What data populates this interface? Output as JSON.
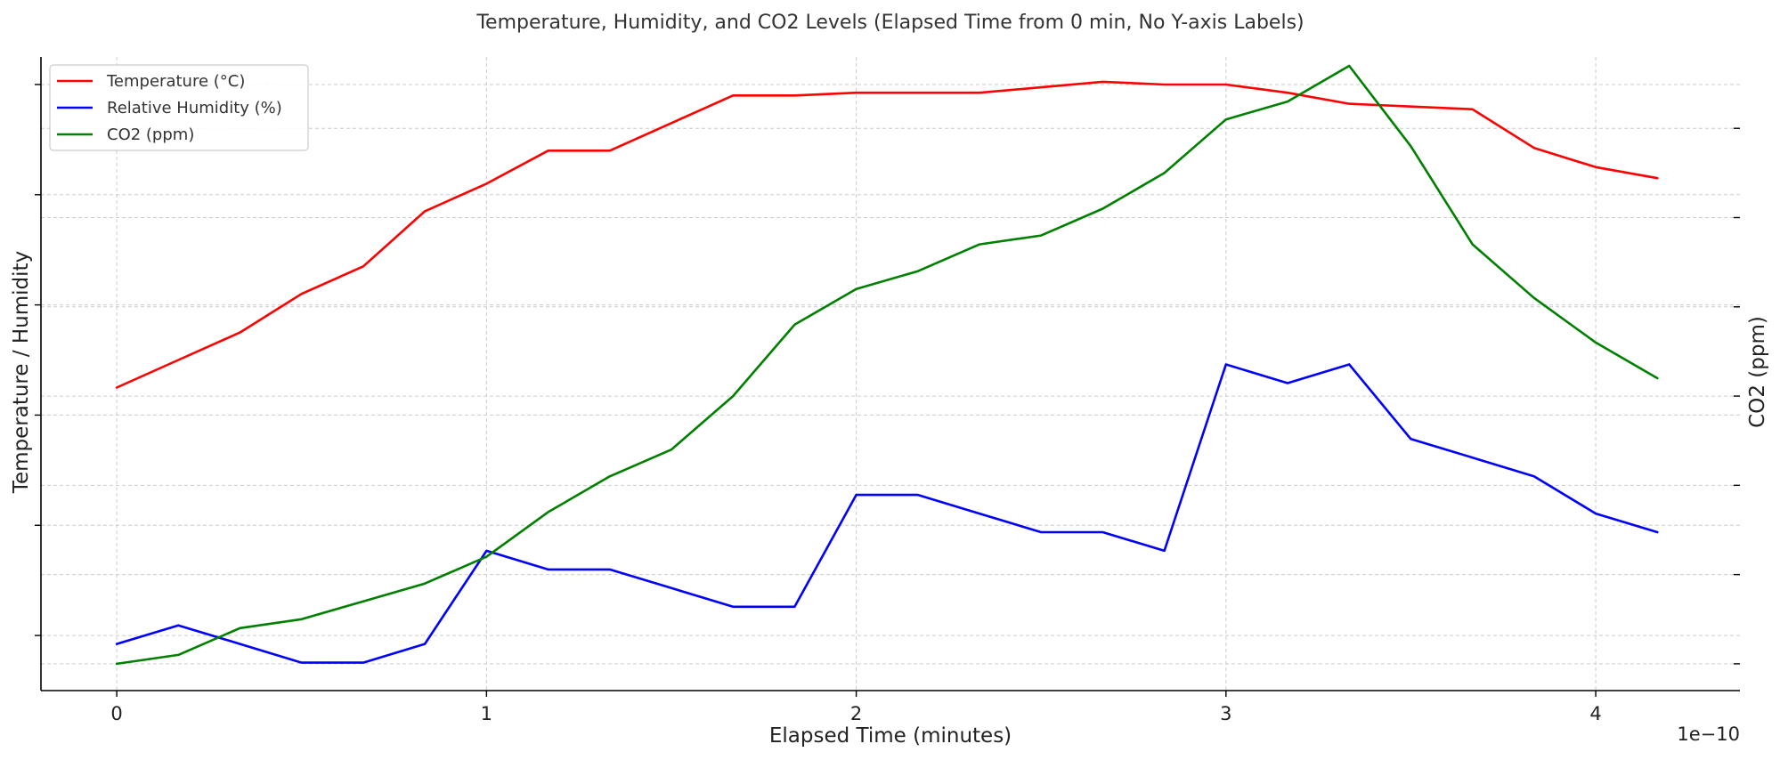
{
  "chart_data": {
    "type": "line",
    "title": "Temperature, Humidity, and CO2 Levels (Elapsed Time from 0 min, No Y-axis Labels)",
    "xlabel": "Elapsed Time (minutes)",
    "ylabel_left": "Temperature / Humidity",
    "ylabel_right": "CO2 (ppm)",
    "x_offset_text": "1e−10",
    "x_ticks": [
      "0",
      "1",
      "2",
      "3",
      "4"
    ],
    "x_tick_values": [
      0,
      1,
      2,
      3,
      4
    ],
    "x": [
      0,
      0.1667,
      0.3333,
      0.5,
      0.6667,
      0.8333,
      1.0,
      1.1667,
      1.3333,
      1.5,
      1.6667,
      1.8333,
      2.0,
      2.1667,
      2.3333,
      2.5,
      2.6667,
      2.8333,
      3.0,
      3.1667,
      3.3333,
      3.5,
      3.6667,
      3.8333,
      4.0,
      4.1667
    ],
    "grid": true,
    "legend_position": "top-left",
    "series": [
      {
        "name": "Temperature (°C)",
        "color": "#ff0000",
        "axis": "left",
        "values": [
          22.5,
          23.0,
          23.5,
          24.2,
          24.7,
          25.7,
          26.2,
          26.8,
          26.8,
          27.3,
          27.8,
          27.8,
          27.85,
          27.85,
          27.85,
          27.95,
          28.05,
          28.0,
          28.0,
          27.85,
          27.65,
          27.6,
          27.55,
          26.85,
          26.5,
          26.3
        ],
        "ylim": [
          17.0,
          28.5
        ]
      },
      {
        "name": "Relative Humidity (%)",
        "color": "#0000ff",
        "axis": "left",
        "values": [
          52,
          53,
          52,
          51,
          51,
          52,
          57,
          56,
          56,
          55,
          54,
          54,
          60,
          60,
          59,
          58,
          58,
          57,
          67,
          66,
          67,
          63,
          62,
          61,
          59,
          58
        ],
        "ylim": [
          49.5,
          83.5
        ]
      },
      {
        "name": "CO2 (ppm)",
        "color": "#008000",
        "axis": "right",
        "values": [
          400,
          405,
          420,
          425,
          435,
          445,
          460,
          485,
          505,
          520,
          550,
          590,
          610,
          620,
          635,
          640,
          655,
          675,
          705,
          715,
          735,
          690,
          635,
          605,
          580,
          560
        ],
        "ylim": [
          385,
          740
        ]
      }
    ]
  }
}
